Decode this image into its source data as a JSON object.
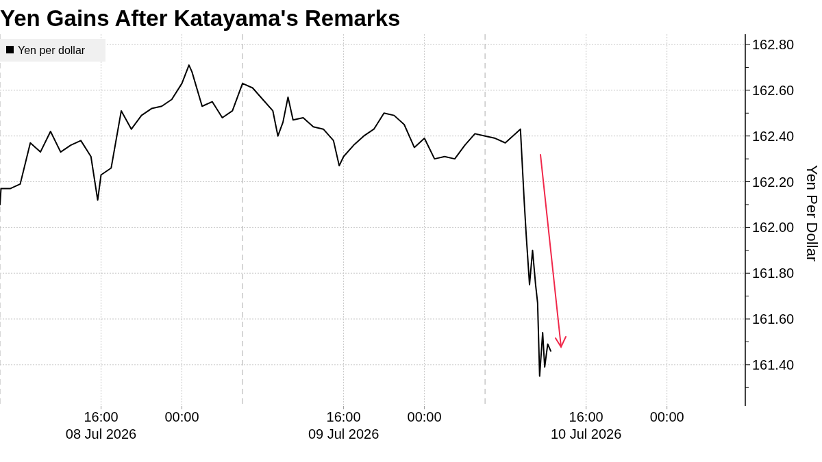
{
  "chart_data": {
    "type": "line",
    "title": "Yen Gains After Katayama's Remarks",
    "ylabel": "Yen Per Dollar",
    "legend": "top left",
    "grid": true,
    "line_style": "solid",
    "marker": "none",
    "x": [
      "2026-07-08T06:00",
      "2026-07-08T06:06",
      "2026-07-08T07:00",
      "2026-07-08T08:00",
      "2026-07-08T09:00",
      "2026-07-08T10:00",
      "2026-07-08T11:00",
      "2026-07-08T12:00",
      "2026-07-08T13:00",
      "2026-07-08T14:00",
      "2026-07-08T15:00",
      "2026-07-08T15:40",
      "2026-07-08T16:00",
      "2026-07-08T17:00",
      "2026-07-08T18:00",
      "2026-07-08T19:00",
      "2026-07-08T20:00",
      "2026-07-08T21:00",
      "2026-07-08T22:00",
      "2026-07-08T23:00",
      "2026-07-09T00:00",
      "2026-07-09T00:42",
      "2026-07-09T01:00",
      "2026-07-09T02:00",
      "2026-07-09T03:00",
      "2026-07-09T04:00",
      "2026-07-09T05:00",
      "2026-07-09T06:00",
      "2026-07-09T07:00",
      "2026-07-09T08:00",
      "2026-07-09T09:00",
      "2026-07-09T09:30",
      "2026-07-09T10:00",
      "2026-07-09T10:30",
      "2026-07-09T11:00",
      "2026-07-09T12:00",
      "2026-07-09T13:00",
      "2026-07-09T14:00",
      "2026-07-09T15:00",
      "2026-07-09T15:34",
      "2026-07-09T16:00",
      "2026-07-09T17:00",
      "2026-07-09T18:00",
      "2026-07-09T19:00",
      "2026-07-09T20:00",
      "2026-07-09T21:00",
      "2026-07-09T22:00",
      "2026-07-09T23:00",
      "2026-07-10T00:00",
      "2026-07-10T01:00",
      "2026-07-10T02:00",
      "2026-07-10T03:00",
      "2026-07-10T04:00",
      "2026-07-10T05:00",
      "2026-07-10T06:00",
      "2026-07-10T07:00",
      "2026-07-10T08:00",
      "2026-07-10T09:30",
      "2026-07-10T09:52",
      "2026-07-10T10:04",
      "2026-07-10T10:24",
      "2026-07-10T10:42",
      "2026-07-10T11:00",
      "2026-07-10T11:12",
      "2026-07-10T11:24",
      "2026-07-10T11:42",
      "2026-07-10T11:54",
      "2026-07-10T12:12",
      "2026-07-10T12:30"
    ],
    "series": [
      {
        "name": "Yen per dollar",
        "color": "#000000",
        "values": [
          162.1,
          162.17,
          162.17,
          162.19,
          162.37,
          162.33,
          162.42,
          162.33,
          162.36,
          162.38,
          162.31,
          162.12,
          162.23,
          162.26,
          162.51,
          162.43,
          162.49,
          162.52,
          162.53,
          162.56,
          162.63,
          162.71,
          162.68,
          162.53,
          162.55,
          162.48,
          162.51,
          162.63,
          162.61,
          162.56,
          162.51,
          162.4,
          162.46,
          162.57,
          162.47,
          162.48,
          162.44,
          162.43,
          162.38,
          162.27,
          162.31,
          162.36,
          162.4,
          162.43,
          162.5,
          162.49,
          162.45,
          162.35,
          162.39,
          162.3,
          162.31,
          162.3,
          162.36,
          162.41,
          162.4,
          162.39,
          162.37,
          162.43,
          162.12,
          161.97,
          161.75,
          161.9,
          161.75,
          161.67,
          161.35,
          161.54,
          161.39,
          161.49,
          161.46
        ]
      }
    ],
    "xlim": [
      "2026-07-08T06:00",
      "2026-07-11T07:45"
    ],
    "xticks": [
      {
        "value": "2026-07-08T16:00",
        "label": "16:00\n08 Jul 2026"
      },
      {
        "value": "2026-07-09T00:00",
        "label": "00:00"
      },
      {
        "value": "2026-07-09T16:00",
        "label": "16:00\n09 Jul 2026"
      },
      {
        "value": "2026-07-10T00:00",
        "label": "00:00"
      },
      {
        "value": "2026-07-10T16:00",
        "label": "16:00\n10 Jul 2026"
      },
      {
        "value": "2026-07-11T00:00",
        "label": "00:00"
      }
    ],
    "ylim": [
      161.22,
      162.845
    ],
    "yticks": [
      {
        "value": 161.3,
        "label": null
      },
      {
        "value": 161.4,
        "label": "161.40"
      },
      {
        "value": 161.5,
        "label": null
      },
      {
        "value": 161.6,
        "label": "161.60"
      },
      {
        "value": 161.7,
        "label": null
      },
      {
        "value": 161.8,
        "label": "161.80"
      },
      {
        "value": 161.9,
        "label": null
      },
      {
        "value": 162.0,
        "label": "162.00"
      },
      {
        "value": 162.1,
        "label": null
      },
      {
        "value": 162.2,
        "label": "162.20"
      },
      {
        "value": 162.3,
        "label": null
      },
      {
        "value": 162.4,
        "label": "162.40"
      },
      {
        "value": 162.5,
        "label": null
      },
      {
        "value": 162.6,
        "label": "162.60"
      },
      {
        "value": 162.7,
        "label": null
      },
      {
        "value": 162.8,
        "label": "162.80"
      }
    ],
    "ref_lines": [
      {
        "axis": "x",
        "value": "2026-07-08T06:00",
        "label": null,
        "color": "#bbbbbb",
        "line_style": "dashed"
      },
      {
        "axis": "x",
        "value": "2026-07-09T06:00",
        "label": null,
        "color": "#bbbbbb",
        "line_style": "dashed"
      },
      {
        "axis": "x",
        "value": "2026-07-10T06:00",
        "label": null,
        "color": "#bbbbbb",
        "line_style": "dashed"
      }
    ]
  }
}
